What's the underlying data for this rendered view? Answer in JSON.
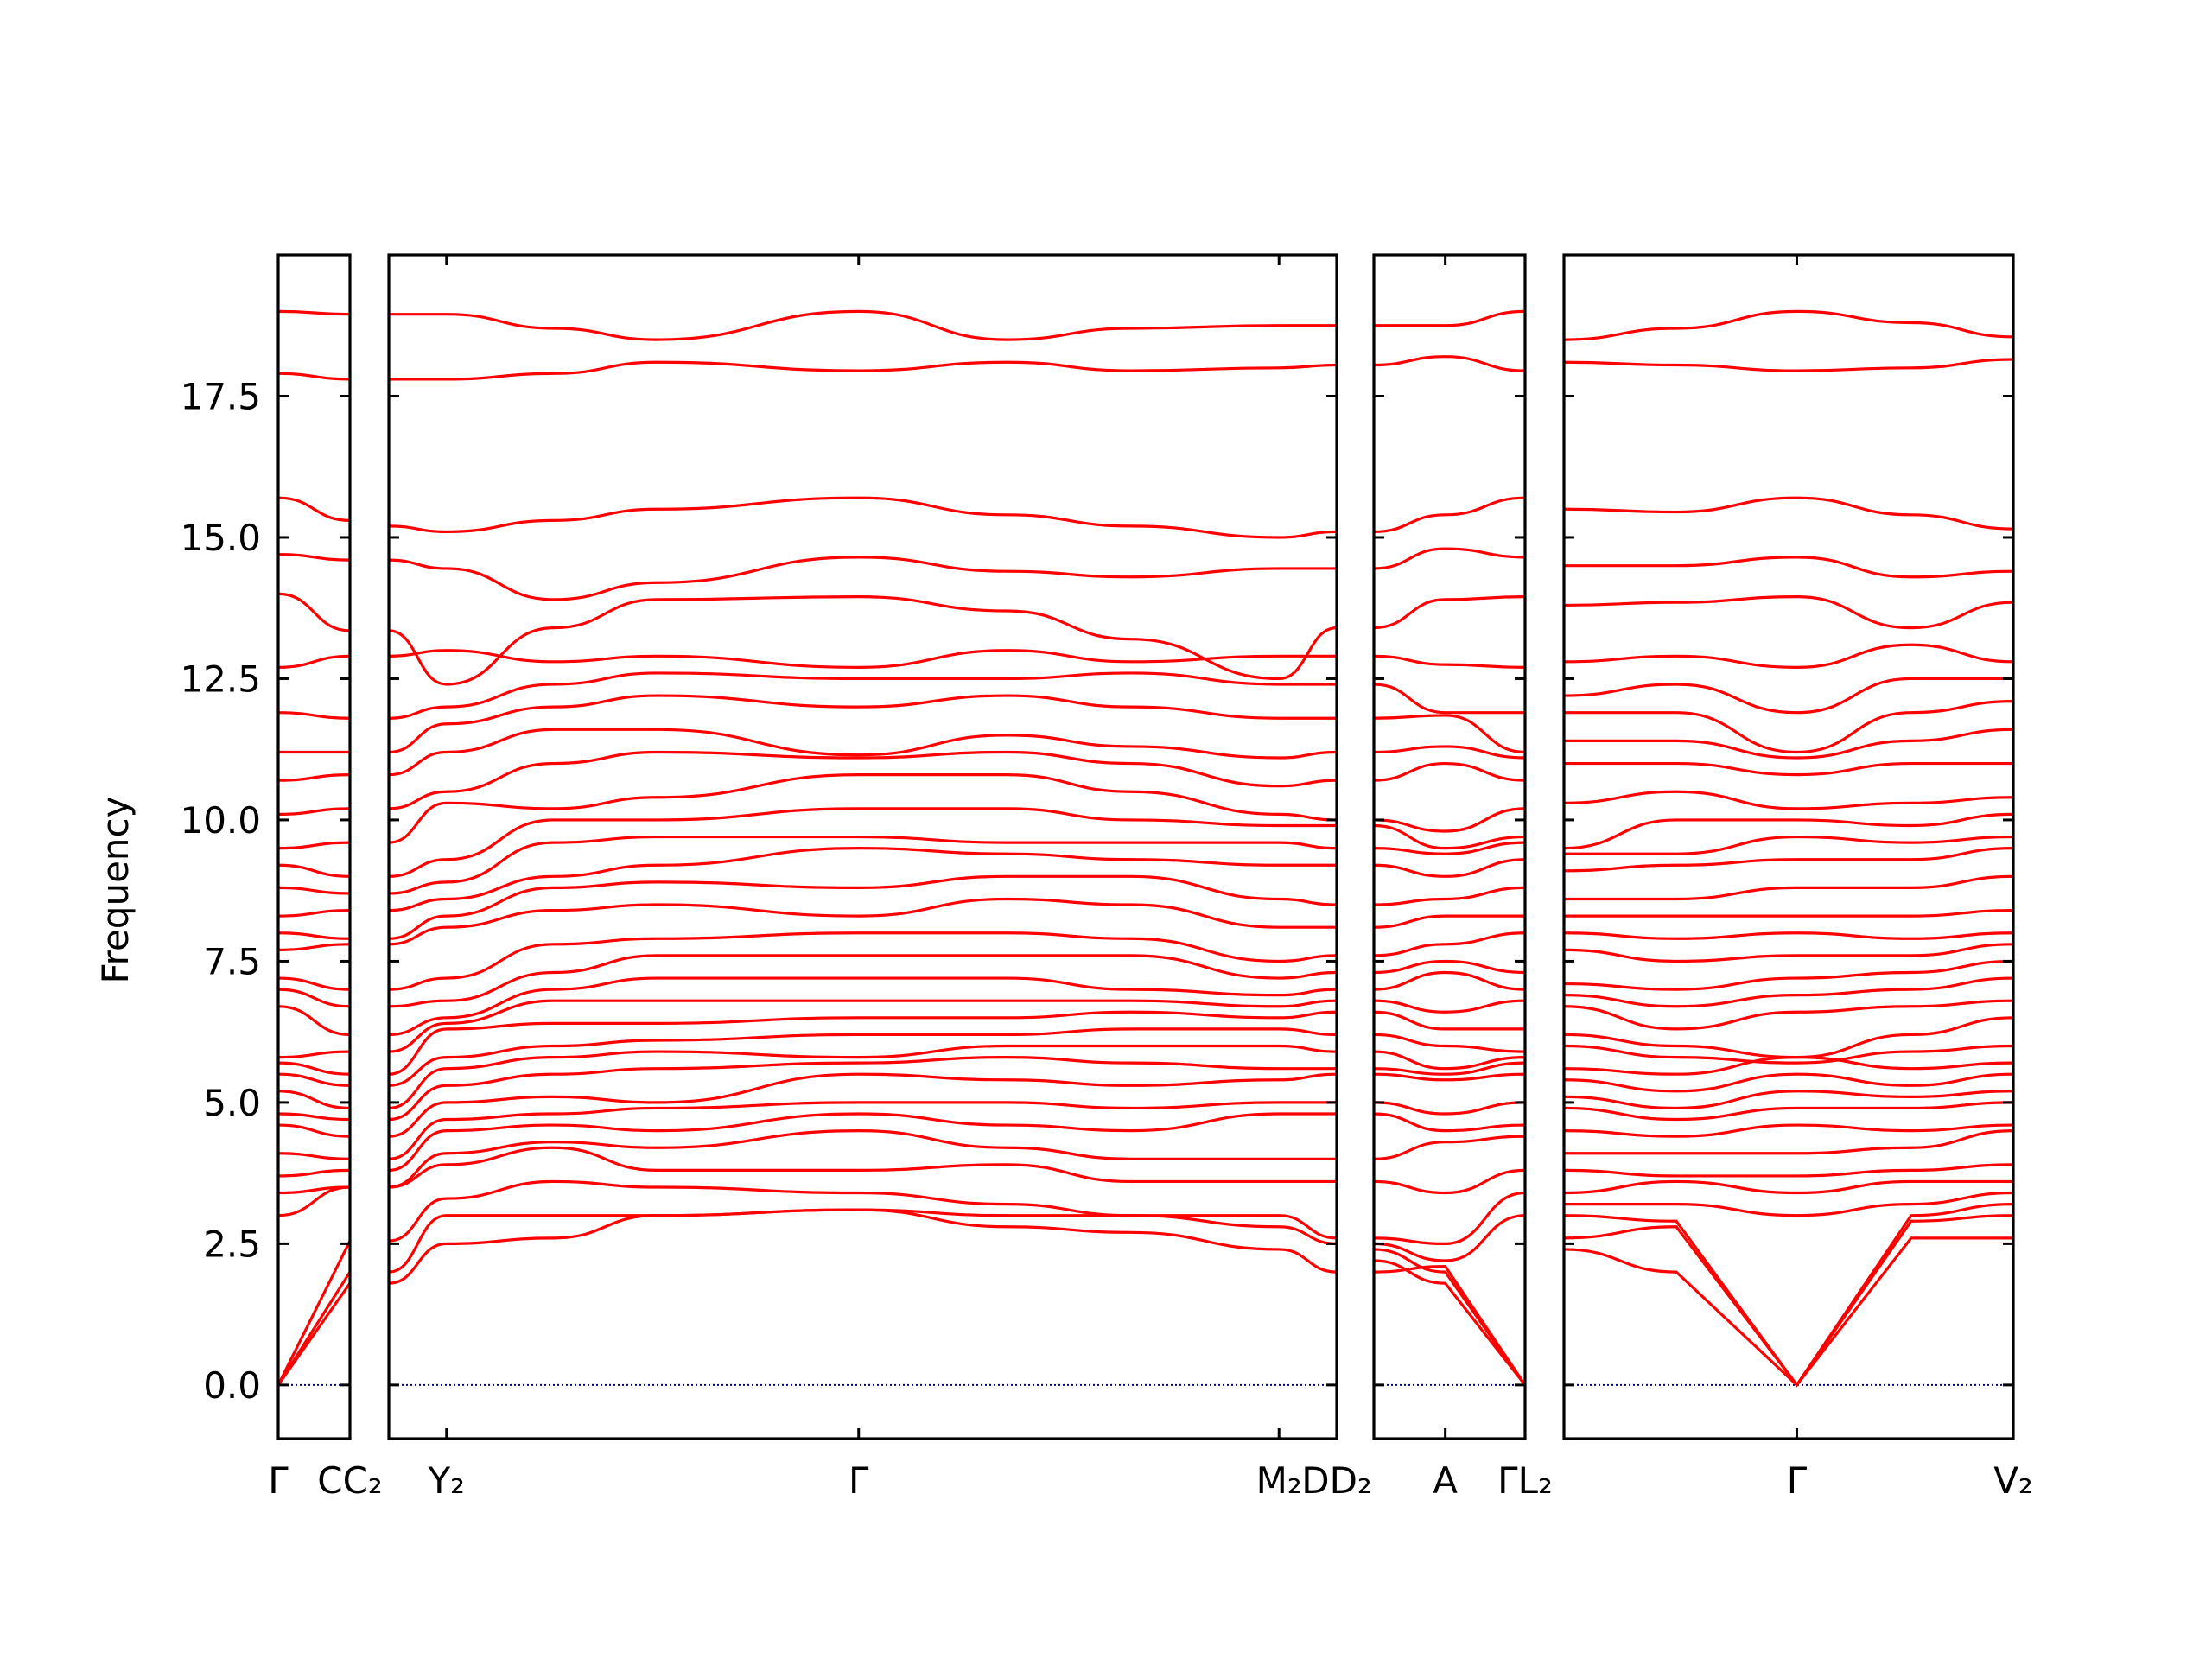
{
  "chart_data": {
    "type": "line",
    "title": "",
    "xlabel": "",
    "ylabel": "Frequency",
    "ylim": [
      -0.95,
      20.0
    ],
    "y_ticks": [
      0.0,
      2.5,
      5.0,
      7.5,
      10.0,
      12.5,
      15.0,
      17.5
    ],
    "y_tick_labels": [
      "0.0",
      "2.5",
      "5.0",
      "7.5",
      "10.0",
      "12.5",
      "15.0",
      "17.5"
    ],
    "grid": false,
    "legend": "none",
    "colors": {
      "bands": "#ff0000",
      "zero_line": "#00008b",
      "frame": "#000000"
    },
    "segments": [
      {
        "path_labels": [
          "Γ",
          "C"
        ],
        "xlim": [
          0.0,
          0.35
        ],
        "ticks": [
          0.0,
          0.35
        ]
      },
      {
        "path_labels": [
          "C₂",
          "Y₂",
          "Γ",
          "M₂",
          "D"
        ],
        "xlim": [
          0.0,
          4.6
        ],
        "ticks": [
          0.0,
          0.28,
          2.28,
          4.32,
          4.6
        ]
      },
      {
        "path_labels": [
          "D₂",
          "A",
          "Γ"
        ],
        "xlim": [
          0.0,
          0.72
        ],
        "ticks": [
          0.0,
          0.34,
          0.72
        ]
      },
      {
        "path_labels": [
          "L₂",
          "Γ",
          "V₂"
        ],
        "xlim": [
          0.0,
          2.2
        ],
        "ticks": [
          0.0,
          1.14,
          2.2
        ]
      }
    ],
    "bottom_labels": [
      {
        "text": "Γ",
        "segment": 0,
        "x": 0.0
      },
      {
        "text": "CC₂",
        "segment": 0,
        "x": 0.35
      },
      {
        "text": "Y₂",
        "segment": 1,
        "x": 0.28
      },
      {
        "text": "Γ",
        "segment": 1,
        "x": 2.28
      },
      {
        "text": "M₂",
        "segment": 1,
        "x": 4.32
      },
      {
        "text": "DD₂",
        "segment": 1,
        "x": 4.6
      },
      {
        "text": "A",
        "segment": 2,
        "x": 0.34
      },
      {
        "text": "ΓL₂",
        "segment": 2,
        "x": 0.72
      },
      {
        "text": "Γ",
        "segment": 3,
        "x": 1.14
      },
      {
        "text": "V₂",
        "segment": 3,
        "x": 2.2
      }
    ],
    "series": [
      {
        "segment": 0,
        "x": [
          0,
          0.35
        ],
        "bands": [
          [
            19.0,
            18.95
          ],
          [
            17.9,
            17.8
          ],
          [
            15.7,
            15.3
          ],
          [
            14.7,
            14.6
          ],
          [
            14.0,
            13.35
          ],
          [
            12.7,
            12.9
          ],
          [
            11.9,
            11.8
          ],
          [
            11.2,
            11.2
          ],
          [
            10.7,
            10.8
          ],
          [
            10.1,
            10.2
          ],
          [
            9.5,
            9.6
          ],
          [
            9.2,
            9.0
          ],
          [
            8.8,
            8.7
          ],
          [
            8.3,
            8.4
          ],
          [
            8.0,
            7.9
          ],
          [
            7.7,
            7.8
          ],
          [
            7.2,
            7.0
          ],
          [
            7.0,
            6.7
          ],
          [
            6.7,
            6.2
          ],
          [
            5.8,
            5.9
          ],
          [
            5.7,
            5.5
          ],
          [
            5.5,
            5.3
          ],
          [
            5.2,
            4.9
          ],
          [
            4.8,
            4.7
          ],
          [
            4.6,
            4.4
          ],
          [
            4.1,
            4.0
          ],
          [
            3.7,
            3.8
          ],
          [
            3.4,
            3.5
          ],
          [
            3.0,
            3.5
          ],
          [
            0.0,
            2.55
          ],
          [
            0.0,
            2.0
          ],
          [
            0.0,
            1.8
          ]
        ]
      },
      {
        "segment": 1,
        "x": [
          0,
          0.28,
          0.8,
          1.3,
          2.28,
          3.0,
          3.6,
          4.32,
          4.6
        ],
        "bands": [
          [
            18.95,
            18.95,
            18.7,
            18.5,
            19.0,
            18.5,
            18.7,
            18.75,
            18.75
          ],
          [
            17.8,
            17.8,
            17.9,
            18.1,
            17.95,
            18.1,
            17.95,
            18.0,
            18.05
          ],
          [
            15.2,
            15.1,
            15.3,
            15.5,
            15.7,
            15.4,
            15.2,
            15.0,
            15.1
          ],
          [
            14.6,
            14.45,
            13.9,
            14.2,
            14.65,
            14.4,
            14.3,
            14.45,
            14.45
          ],
          [
            13.35,
            12.4,
            13.4,
            13.9,
            13.95,
            13.7,
            13.2,
            12.5,
            13.4
          ],
          [
            12.9,
            13.0,
            12.8,
            12.9,
            12.7,
            13.0,
            12.8,
            12.9,
            12.9
          ],
          [
            11.8,
            12.0,
            12.4,
            12.6,
            12.5,
            12.5,
            12.6,
            12.4,
            12.4
          ],
          [
            11.2,
            11.7,
            12.0,
            12.2,
            12.0,
            12.2,
            12.0,
            11.8,
            11.8
          ],
          [
            10.8,
            11.2,
            11.6,
            11.6,
            11.15,
            11.5,
            11.3,
            11.1,
            11.2
          ],
          [
            10.2,
            10.5,
            11.0,
            11.2,
            11.1,
            11.2,
            11.0,
            10.6,
            10.7
          ],
          [
            9.6,
            10.3,
            10.2,
            10.4,
            10.8,
            10.8,
            10.5,
            10.1,
            10.0
          ],
          [
            9.0,
            9.3,
            10.0,
            10.0,
            10.2,
            10.2,
            10.0,
            9.9,
            9.9
          ],
          [
            8.7,
            8.9,
            9.6,
            9.7,
            9.7,
            9.6,
            9.6,
            9.6,
            9.5
          ],
          [
            8.4,
            8.6,
            9.0,
            9.2,
            9.5,
            9.4,
            9.3,
            9.2,
            9.2
          ],
          [
            7.9,
            8.3,
            8.8,
            8.9,
            8.8,
            9.0,
            9.0,
            8.6,
            8.5
          ],
          [
            7.8,
            8.1,
            8.4,
            8.5,
            8.3,
            8.6,
            8.5,
            8.1,
            8.1
          ],
          [
            7.0,
            7.2,
            7.8,
            7.9,
            8.0,
            8.0,
            7.9,
            7.5,
            7.6
          ],
          [
            6.7,
            6.8,
            7.3,
            7.6,
            7.6,
            7.6,
            7.6,
            7.2,
            7.3
          ],
          [
            6.2,
            6.5,
            7.0,
            7.2,
            7.2,
            7.2,
            7.0,
            6.9,
            7.0
          ],
          [
            5.9,
            6.4,
            6.8,
            6.8,
            6.8,
            6.8,
            6.8,
            6.7,
            6.8
          ],
          [
            5.5,
            6.3,
            6.4,
            6.4,
            6.5,
            6.5,
            6.6,
            6.5,
            6.6
          ],
          [
            5.3,
            5.8,
            6.0,
            6.1,
            6.2,
            6.2,
            6.3,
            6.3,
            6.2
          ],
          [
            4.9,
            5.6,
            5.8,
            5.9,
            5.8,
            6.0,
            6.0,
            6.0,
            5.9
          ],
          [
            4.7,
            5.3,
            5.5,
            5.6,
            5.7,
            5.8,
            5.7,
            5.6,
            5.6
          ],
          [
            4.4,
            5.0,
            5.1,
            5.0,
            5.5,
            5.4,
            5.3,
            5.4,
            5.5
          ],
          [
            4.0,
            4.7,
            4.8,
            4.9,
            5.0,
            5.0,
            4.9,
            5.0,
            5.0
          ],
          [
            3.8,
            4.5,
            4.6,
            4.5,
            4.8,
            4.6,
            4.5,
            4.8,
            4.8
          ],
          [
            3.5,
            4.1,
            4.3,
            4.2,
            4.5,
            4.2,
            4.0,
            4.0,
            4.0
          ],
          [
            3.5,
            3.9,
            4.2,
            3.8,
            3.8,
            3.9,
            3.6,
            3.6,
            3.6
          ],
          [
            2.55,
            3.3,
            3.6,
            3.5,
            3.4,
            3.2,
            3.0,
            3.0,
            2.6
          ],
          [
            2.0,
            3.0,
            3.0,
            3.0,
            3.1,
            3.0,
            3.0,
            2.8,
            2.5
          ],
          [
            1.8,
            2.5,
            2.6,
            3.0,
            3.1,
            2.8,
            2.7,
            2.4,
            2.0
          ]
        ]
      },
      {
        "segment": 2,
        "x": [
          0,
          0.34,
          0.72
        ],
        "bands": [
          [
            18.75,
            18.75,
            19.0
          ],
          [
            18.05,
            18.2,
            17.95
          ],
          [
            15.1,
            15.4,
            15.7
          ],
          [
            14.45,
            14.8,
            14.65
          ],
          [
            13.4,
            13.9,
            13.95
          ],
          [
            12.9,
            12.75,
            12.7
          ],
          [
            12.4,
            11.9,
            11.9
          ],
          [
            11.8,
            11.85,
            11.2
          ],
          [
            11.2,
            11.3,
            11.1
          ],
          [
            10.7,
            11.0,
            10.7
          ],
          [
            10.0,
            9.8,
            10.2
          ],
          [
            9.9,
            9.5,
            9.7
          ],
          [
            9.5,
            9.4,
            9.6
          ],
          [
            9.2,
            9.0,
            9.3
          ],
          [
            8.5,
            8.6,
            8.8
          ],
          [
            8.1,
            8.3,
            8.3
          ],
          [
            7.6,
            7.8,
            8.0
          ],
          [
            7.3,
            7.5,
            7.3
          ],
          [
            7.0,
            7.3,
            7.0
          ],
          [
            6.8,
            6.6,
            6.8
          ],
          [
            6.6,
            6.3,
            6.3
          ],
          [
            6.2,
            6.0,
            5.9
          ],
          [
            5.9,
            5.6,
            5.8
          ],
          [
            5.6,
            5.5,
            5.7
          ],
          [
            5.5,
            5.4,
            5.5
          ],
          [
            5.0,
            4.8,
            5.0
          ],
          [
            4.8,
            4.5,
            4.6
          ],
          [
            4.0,
            4.3,
            4.4
          ],
          [
            3.6,
            3.4,
            3.8
          ],
          [
            2.6,
            2.5,
            3.4
          ],
          [
            2.5,
            2.2,
            3.0
          ],
          [
            2.0,
            2.1,
            0.0
          ],
          [
            2.2,
            1.8,
            0.0
          ],
          [
            2.4,
            2.0,
            0.0
          ]
        ]
      },
      {
        "segment": 3,
        "x": [
          0,
          0.55,
          1.14,
          1.7,
          2.2
        ],
        "bands": [
          [
            18.5,
            18.7,
            19.0,
            18.8,
            18.55
          ],
          [
            18.1,
            18.05,
            17.95,
            18.0,
            18.15
          ],
          [
            15.5,
            15.45,
            15.7,
            15.4,
            15.15
          ],
          [
            14.5,
            14.5,
            14.65,
            14.3,
            14.4
          ],
          [
            13.8,
            13.85,
            13.95,
            13.4,
            13.85
          ],
          [
            12.8,
            12.9,
            12.7,
            13.1,
            12.8
          ],
          [
            12.2,
            12.4,
            11.9,
            12.5,
            12.5
          ],
          [
            11.9,
            11.9,
            11.2,
            11.9,
            12.1
          ],
          [
            11.4,
            11.4,
            11.1,
            11.4,
            11.6
          ],
          [
            11.0,
            11.0,
            10.8,
            11.0,
            11.0
          ],
          [
            10.3,
            10.5,
            10.2,
            10.3,
            10.4
          ],
          [
            9.5,
            10.0,
            10.0,
            9.9,
            10.1
          ],
          [
            9.4,
            9.4,
            9.7,
            9.6,
            9.7
          ],
          [
            9.1,
            9.2,
            9.3,
            9.3,
            9.5
          ],
          [
            8.6,
            8.6,
            8.8,
            8.8,
            9.0
          ],
          [
            8.3,
            8.3,
            8.3,
            8.3,
            8.4
          ],
          [
            8.0,
            7.9,
            8.0,
            7.9,
            8.0
          ],
          [
            7.7,
            7.5,
            7.6,
            7.6,
            7.8
          ],
          [
            7.1,
            7.0,
            7.2,
            7.3,
            7.5
          ],
          [
            6.9,
            6.7,
            6.9,
            7.0,
            7.2
          ],
          [
            6.7,
            6.3,
            6.6,
            6.7,
            6.8
          ],
          [
            6.2,
            6.0,
            5.8,
            6.2,
            6.5
          ],
          [
            6.0,
            5.8,
            5.7,
            5.9,
            6.0
          ],
          [
            5.6,
            5.5,
            5.8,
            5.6,
            5.7
          ],
          [
            5.4,
            5.2,
            5.5,
            5.3,
            5.5
          ],
          [
            5.1,
            4.9,
            5.2,
            5.1,
            5.2
          ],
          [
            4.9,
            4.7,
            4.9,
            4.9,
            5.0
          ],
          [
            4.5,
            4.4,
            4.6,
            4.5,
            4.6
          ],
          [
            4.1,
            4.1,
            4.1,
            4.2,
            4.5
          ],
          [
            3.8,
            3.7,
            3.7,
            3.8,
            3.9
          ],
          [
            3.4,
            3.6,
            3.4,
            3.6,
            3.6
          ],
          [
            3.2,
            3.2,
            3.0,
            3.2,
            3.4
          ],
          [
            3.0,
            2.9,
            0.0,
            3.0,
            3.2
          ],
          [
            2.6,
            2.8,
            0.0,
            2.9,
            3.0
          ],
          [
            2.4,
            2.0,
            0.0,
            2.6,
            2.6
          ]
        ]
      }
    ]
  }
}
